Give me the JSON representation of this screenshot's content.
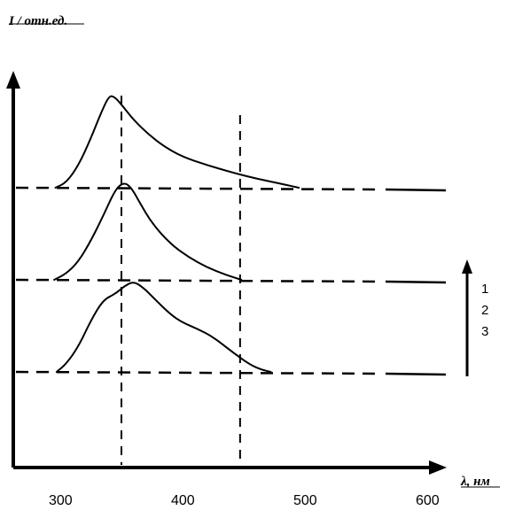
{
  "chart_data": {
    "type": "line",
    "ylabel": "I / отн.ед.",
    "xlabel": "λ, нм",
    "xlim": [
      270,
      620
    ],
    "x_ticks": [
      "300",
      "400",
      "500",
      "600"
    ],
    "x_tick_values": [
      300,
      400,
      500,
      600
    ],
    "guide_lines_x": [
      350,
      447
    ],
    "legend": {
      "entries": [
        "1",
        "2",
        "3"
      ],
      "placement": "right"
    },
    "series": [
      {
        "name": "1",
        "offset": 0,
        "x": [
          296,
          305,
          315,
          325,
          333,
          340,
          345,
          352,
          360,
          372,
          385,
          400,
          420,
          440,
          460,
          480,
          495
        ],
        "y": [
          0,
          0.05,
          0.22,
          0.48,
          0.72,
          0.9,
          0.88,
          0.78,
          0.66,
          0.52,
          0.4,
          0.3,
          0.22,
          0.15,
          0.09,
          0.04,
          0
        ]
      },
      {
        "name": "2",
        "offset": 1,
        "x": [
          295,
          305,
          315,
          325,
          335,
          345,
          352,
          358,
          365,
          375,
          390,
          405,
          420,
          435,
          448
        ],
        "y": [
          0,
          0.06,
          0.18,
          0.38,
          0.62,
          0.88,
          0.95,
          0.9,
          0.75,
          0.55,
          0.35,
          0.22,
          0.12,
          0.05,
          0
        ]
      },
      {
        "name": "3",
        "offset": 2,
        "x": [
          297,
          305,
          315,
          325,
          335,
          345,
          353,
          360,
          368,
          378,
          390,
          400,
          412,
          425,
          440,
          455,
          465,
          472
        ],
        "y": [
          0,
          0.08,
          0.25,
          0.5,
          0.7,
          0.76,
          0.84,
          0.88,
          0.82,
          0.7,
          0.56,
          0.48,
          0.42,
          0.34,
          0.2,
          0.07,
          0.02,
          0
        ]
      }
    ]
  }
}
